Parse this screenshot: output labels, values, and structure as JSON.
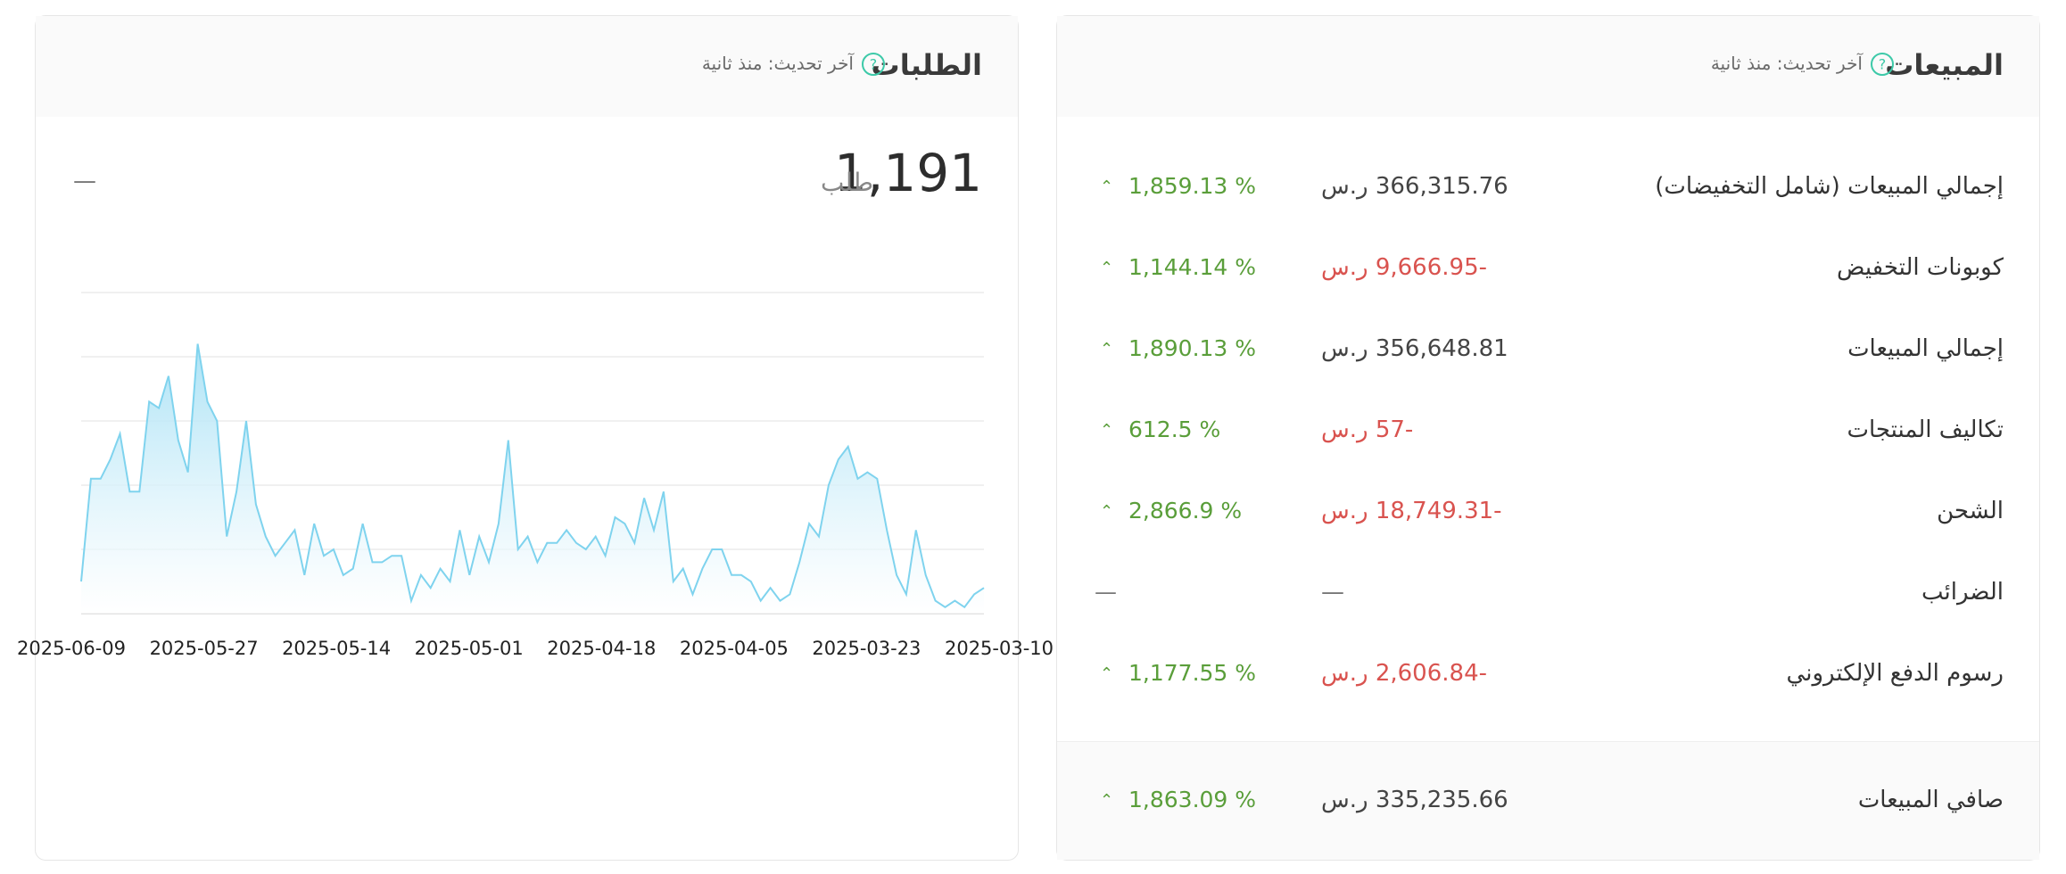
{
  "sales_card": {
    "title": "المبيعات",
    "updated": "آخر تحديث: منذ ثانية",
    "rows": [
      {
        "label": "إجمالي المبيعات (شامل التخفيضات)",
        "value": "366,315.76 ر.س",
        "change": "1,859.13 %"
      },
      {
        "label": "كوبونات التخفيض",
        "value": "-9,666.95 ر.س",
        "change": "1,144.14 %"
      },
      {
        "label": "إجمالي المبيعات",
        "value": "356,648.81 ر.س",
        "change": "1,890.13 %"
      },
      {
        "label": "تكاليف المنتجات",
        "value": "-57 ر.س",
        "change": "612.5 %"
      },
      {
        "label": "الشحن",
        "value": "-18,749.31 ر.س",
        "change": "2,866.9 %"
      },
      {
        "label": "الضرائب",
        "value": "—",
        "change": "—"
      },
      {
        "label": "رسوم الدفع الإلكتروني",
        "value": "-2,606.84 ر.س",
        "change": "1,177.55 %"
      }
    ],
    "net": {
      "label": "صافي المبيعات",
      "value": "335,235.66 ر.س",
      "change": "1,863.09 %"
    }
  },
  "orders_card": {
    "title": "الطلبات",
    "updated": "آخر تحديث: منذ ثانية",
    "count": "1,191",
    "unit": "طلب",
    "change": "—"
  },
  "colors": {
    "positive": "#5a9e3a",
    "negative": "#d9534f",
    "chart_line": "#7fd3ee",
    "chart_fill": "#a8e1f5",
    "help_icon": "#3cc9a8"
  },
  "chart_data": {
    "type": "area",
    "x_tick_labels": [
      "2025-06-09",
      "2025-05-27",
      "2025-05-14",
      "2025-05-01",
      "2025-04-18",
      "2025-04-05",
      "2025-03-23",
      "2025-03-10"
    ],
    "values": [
      5,
      21,
      21,
      24,
      28,
      19,
      19,
      33,
      32,
      37,
      27,
      22,
      42,
      33,
      30,
      12,
      19,
      30,
      17,
      12,
      9,
      11,
      13,
      6,
      14,
      9,
      10,
      6,
      7,
      14,
      8,
      8,
      9,
      9,
      2,
      6,
      4,
      7,
      5,
      13,
      6,
      12,
      8,
      14,
      27,
      10,
      12,
      8,
      11,
      11,
      13,
      11,
      10,
      12,
      9,
      15,
      14,
      11,
      18,
      13,
      19,
      5,
      7,
      3,
      7,
      10,
      10,
      6,
      6,
      5,
      2,
      4,
      2,
      3,
      8,
      14,
      12,
      20,
      24,
      26,
      21,
      22,
      21,
      13,
      6,
      3,
      13,
      6,
      2,
      1,
      2,
      1,
      3,
      4
    ],
    "ylim": [
      0,
      50
    ],
    "grid": true
  }
}
